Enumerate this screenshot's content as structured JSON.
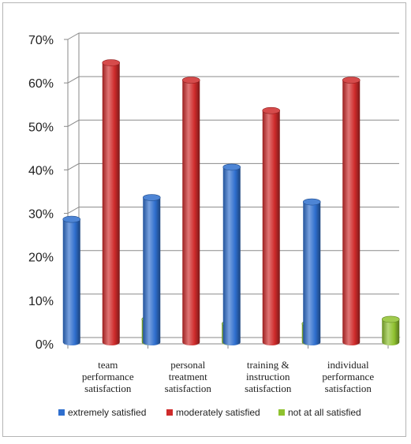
{
  "chart_data": {
    "type": "bar",
    "categories": [
      "team performance satisfaction",
      "personal treatment satisfaction",
      "training & instruction satisfaction",
      "individual performance satisfaction"
    ],
    "category_lines": [
      [
        "team",
        "performance",
        "satisfaction"
      ],
      [
        "personal",
        "treatment",
        "satisfaction"
      ],
      [
        "training &",
        "instruction",
        "satisfaction"
      ],
      [
        "individual",
        "performance",
        "satisfaction"
      ]
    ],
    "series": [
      {
        "name": "extremely satisfied",
        "values": [
          29,
          34,
          41,
          33
        ],
        "color": "#2f6fce"
      },
      {
        "name": "moderately satisfied",
        "values": [
          65,
          61,
          54,
          61
        ],
        "color": "#cf2b2b"
      },
      {
        "name": "not at all satisfied",
        "values": [
          6,
          5,
          5,
          6
        ],
        "color": "#8fc22f"
      }
    ],
    "y_ticks": [
      "0%",
      "10%",
      "20%",
      "30%",
      "40%",
      "50%",
      "60%",
      "70%"
    ],
    "ylim": [
      0,
      70
    ],
    "y_unit": "%",
    "grid": true,
    "legend_position": "bottom",
    "style": "3d-cylinder"
  }
}
